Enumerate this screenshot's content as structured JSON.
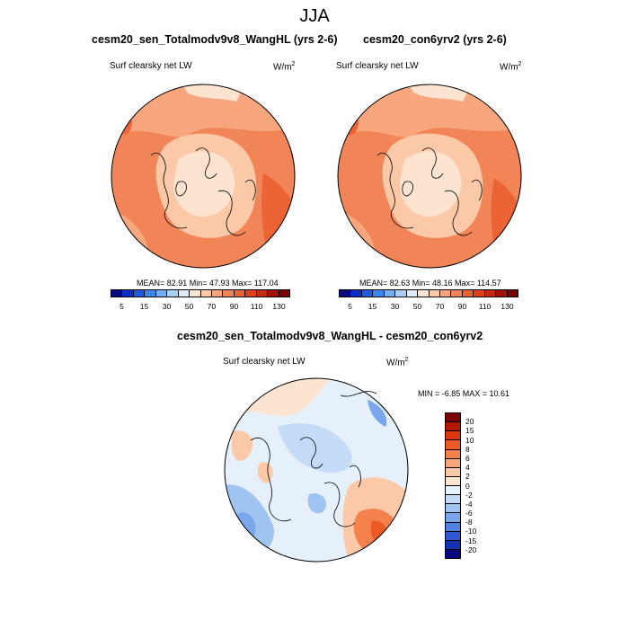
{
  "season": "JJA",
  "panels": [
    {
      "title": "cesm20_sen_Totalmodv9v8_WangHL (yrs 2-6)",
      "variable": "Surf clearsky net LW",
      "units_base": "W/m",
      "units_sup": "2",
      "stats": "MEAN=  82.91  Min=  47.93  Max= 117.04",
      "colorbar_ticks": [
        "5",
        "15",
        "30",
        "50",
        "70",
        "90",
        "110",
        "130"
      ],
      "colorbar_colors": [
        "#0a0a80",
        "#0b2dc8",
        "#1f5ae6",
        "#3d86f0",
        "#72aef5",
        "#aad0f8",
        "#dcecfb",
        "#fde4d0",
        "#fbc8a8",
        "#f7a67e",
        "#f28557",
        "#ec6434",
        "#df4218",
        "#c42a0b",
        "#a11304",
        "#7a0403"
      ]
    },
    {
      "title": "cesm20_con6yrv2 (yrs 2-6)",
      "variable": "Surf clearsky net LW",
      "units_base": "W/m",
      "units_sup": "2",
      "stats": "MEAN=  82.63  Min=  48.16  Max= 114.57",
      "colorbar_ticks": [
        "5",
        "15",
        "30",
        "50",
        "70",
        "90",
        "110",
        "130"
      ],
      "colorbar_colors": [
        "#0a0a80",
        "#0b2dc8",
        "#1f5ae6",
        "#3d86f0",
        "#72aef5",
        "#aad0f8",
        "#dcecfb",
        "#fde4d0",
        "#fbc8a8",
        "#f7a67e",
        "#f28557",
        "#ec6434",
        "#df4218",
        "#c42a0b",
        "#a11304",
        "#7a0403"
      ]
    }
  ],
  "diff": {
    "title": "cesm20_sen_Totalmodv9v8_WangHL - cesm20_con6yrv2",
    "variable": "Surf clearsky net LW",
    "units_base": "W/m",
    "units_sup": "2",
    "minmax": "MIN =  -6.85 MAX =  10.61",
    "colorbar_levels": [
      "20",
      "15",
      "10",
      "8",
      "6",
      "4",
      "2",
      "0",
      "-2",
      "-4",
      "-6",
      "-8",
      "-10",
      "-15",
      "-20"
    ],
    "colorbar_colors": [
      "#7a0403",
      "#b01800",
      "#dc3a0c",
      "#ee5a24",
      "#f4804c",
      "#f7a57c",
      "#fbc8a8",
      "#fde4d0",
      "#e6f0fb",
      "#c4dcf7",
      "#a0c4f2",
      "#7aa6ec",
      "#5282e2",
      "#2c58d4",
      "#1432b4",
      "#0a0a80"
    ]
  }
}
